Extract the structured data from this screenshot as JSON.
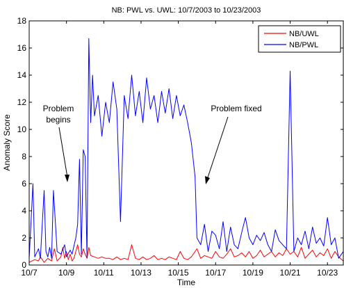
{
  "chart_data": {
    "type": "line",
    "title": "NB: PWL vs. UWL: 10/7/2003 to 10/23/2003",
    "xlabel": "Time",
    "ylabel": "Anomaly Score",
    "x_ticks": [
      "10/7",
      "10/9",
      "10/11",
      "10/13",
      "10/15",
      "10/17",
      "10/19",
      "10/21",
      "10/23"
    ],
    "xlim": [
      0,
      16.85
    ],
    "ylim": [
      0,
      18
    ],
    "y_ticks": [
      0,
      2,
      4,
      6,
      8,
      10,
      12,
      14,
      16,
      18
    ],
    "grid": false,
    "legend": "top-right",
    "series": [
      {
        "name": "NB/UWL",
        "color": "#ff0000",
        "x": [
          0,
          0.3,
          0.5,
          0.6,
          0.8,
          1.0,
          1.2,
          1.35,
          1.5,
          1.7,
          1.8,
          1.9,
          2.0,
          2.1,
          2.2,
          2.3,
          2.4,
          2.5,
          2.6,
          2.7,
          2.8,
          2.9,
          3.0,
          3.1,
          3.2,
          3.3,
          3.5,
          3.7,
          3.9,
          4.1,
          4.3,
          4.5,
          4.7,
          4.9,
          5.1,
          5.3,
          5.5,
          5.7,
          5.9,
          6.1,
          6.3,
          6.5,
          6.7,
          6.9,
          7.1,
          7.3,
          7.5,
          7.7,
          7.9,
          8.1,
          8.3,
          8.5,
          8.7,
          8.8,
          9.0,
          9.2,
          9.4,
          9.6,
          9.8,
          10.0,
          10.2,
          10.4,
          10.6,
          10.8,
          11.0,
          11.2,
          11.4,
          11.6,
          11.8,
          12.0,
          12.2,
          12.4,
          12.6,
          12.8,
          13.0,
          13.2,
          13.4,
          13.6,
          13.8,
          14.0,
          14.2,
          14.4,
          14.6,
          14.8,
          15.0,
          15.2,
          15.4,
          15.6,
          15.8,
          16.0,
          16.2,
          16.4,
          16.6,
          16.85
        ],
        "values": [
          0.2,
          0.4,
          0.3,
          0.6,
          0.2,
          0.5,
          0.3,
          1.2,
          0.3,
          0.6,
          1.3,
          0.5,
          1.0,
          0.4,
          0.8,
          0.3,
          0.5,
          1.0,
          1.5,
          0.8,
          0.6,
          1.2,
          0.8,
          0.5,
          1.3,
          0.7,
          0.6,
          0.5,
          0.6,
          0.5,
          0.5,
          0.4,
          0.6,
          0.4,
          0.5,
          0.4,
          1.5,
          0.5,
          0.4,
          0.6,
          0.4,
          0.5,
          0.7,
          0.4,
          0.5,
          0.4,
          0.6,
          0.5,
          0.4,
          1.0,
          0.5,
          0.4,
          0.6,
          0.8,
          1.2,
          0.5,
          0.7,
          0.6,
          0.5,
          1.0,
          0.6,
          0.5,
          0.8,
          1.2,
          0.6,
          0.7,
          0.9,
          0.6,
          1.0,
          0.5,
          0.7,
          1.1,
          0.6,
          0.8,
          1.0,
          0.6,
          0.9,
          0.7,
          1.2,
          0.8,
          1.0,
          0.6,
          1.3,
          0.5,
          0.8,
          1.1,
          0.6,
          0.9,
          0.7,
          1.2,
          0.5,
          1.0,
          0.6,
          0.3
        ]
      },
      {
        "name": "NB/PWL",
        "color": "#0000ff",
        "x": [
          0,
          0.2,
          0.3,
          0.5,
          0.6,
          0.8,
          0.9,
          1.0,
          1.1,
          1.2,
          1.3,
          1.5,
          1.7,
          1.9,
          2.0,
          2.2,
          2.3,
          2.5,
          2.6,
          2.7,
          2.8,
          2.9,
          3.0,
          3.1,
          3.2,
          3.3,
          3.4,
          3.5,
          3.7,
          3.9,
          4.1,
          4.3,
          4.5,
          4.7,
          4.9,
          5.1,
          5.3,
          5.5,
          5.7,
          5.9,
          6.1,
          6.3,
          6.5,
          6.7,
          6.9,
          7.1,
          7.3,
          7.5,
          7.7,
          7.9,
          8.1,
          8.3,
          8.5,
          8.7,
          8.9,
          9.0,
          9.2,
          9.4,
          9.6,
          9.8,
          10.0,
          10.2,
          10.4,
          10.6,
          10.8,
          11.0,
          11.2,
          11.4,
          11.6,
          11.8,
          12.0,
          12.2,
          12.4,
          12.6,
          12.8,
          13.0,
          13.2,
          13.4,
          13.6,
          13.8,
          14.0,
          14.2,
          14.4,
          14.6,
          14.8,
          15.0,
          15.2,
          15.4,
          15.6,
          15.8,
          16.0,
          16.2,
          16.4,
          16.6,
          16.85
        ],
        "values": [
          0.5,
          6.0,
          0.6,
          1.2,
          0.5,
          5.5,
          1.0,
          0.6,
          1.3,
          0.5,
          5.5,
          1.0,
          0.8,
          1.5,
          0.6,
          1.1,
          0.8,
          2.0,
          3.0,
          7.8,
          0.8,
          8.5,
          8.0,
          0.5,
          16.7,
          10.5,
          14.0,
          11.0,
          12.5,
          9.5,
          12.0,
          10.5,
          13.5,
          11.5,
          3.2,
          12.5,
          10.8,
          14.0,
          11.0,
          12.8,
          10.5,
          13.8,
          11.5,
          12.5,
          10.5,
          12.8,
          11.2,
          13.0,
          10.8,
          12.5,
          11.0,
          11.8,
          10.5,
          9.0,
          6.5,
          2.0,
          1.5,
          3.0,
          1.0,
          2.5,
          2.2,
          1.2,
          3.2,
          1.0,
          2.8,
          1.5,
          1.2,
          2.4,
          3.5,
          2.0,
          1.5,
          2.2,
          1.8,
          2.4,
          1.5,
          1.0,
          2.6,
          1.8,
          1.5,
          1.2,
          14.3,
          1.0,
          2.0,
          1.5,
          2.5,
          1.2,
          2.8,
          1.6,
          2.0,
          1.4,
          3.5,
          1.5,
          2.0,
          0.5,
          1.0
        ]
      }
    ],
    "annotations": [
      {
        "text_lines": [
          "Problem",
          "begins"
        ],
        "x": 1.95,
        "y": 6.0
      },
      {
        "text_lines": [
          "Problem fixed"
        ],
        "x": 8.9,
        "y": 6.0
      }
    ]
  }
}
